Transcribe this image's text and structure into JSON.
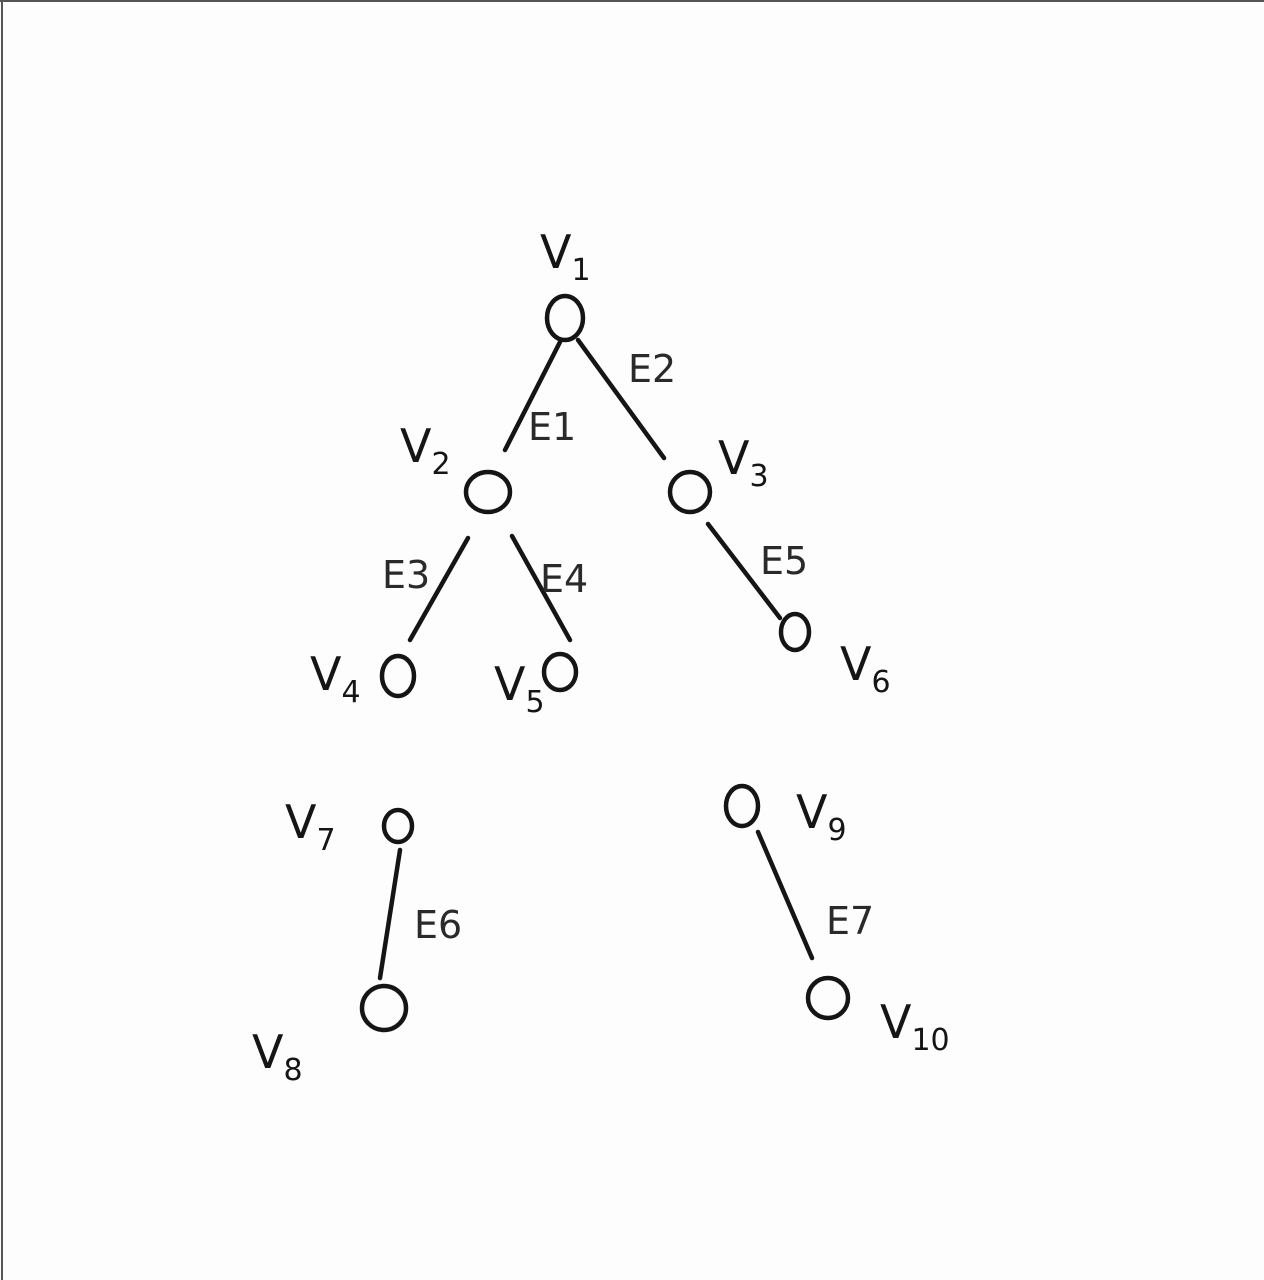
{
  "graph": {
    "nodes": [
      {
        "id": "v1",
        "letter": "V",
        "sub": "1"
      },
      {
        "id": "v2",
        "letter": "V",
        "sub": "2"
      },
      {
        "id": "v3",
        "letter": "V",
        "sub": "3"
      },
      {
        "id": "v4",
        "letter": "V",
        "sub": "4"
      },
      {
        "id": "v5",
        "letter": "V",
        "sub": "5"
      },
      {
        "id": "v6",
        "letter": "V",
        "sub": "6"
      },
      {
        "id": "v7",
        "letter": "V",
        "sub": "7"
      },
      {
        "id": "v8",
        "letter": "V",
        "sub": "8"
      },
      {
        "id": "v9",
        "letter": "V",
        "sub": "9"
      },
      {
        "id": "v10",
        "letter": "V",
        "sub": "10"
      }
    ],
    "edges": [
      {
        "id": "e1",
        "label": "E1",
        "from": "v1",
        "to": "v2"
      },
      {
        "id": "e2",
        "label": "E2",
        "from": "v1",
        "to": "v3"
      },
      {
        "id": "e3",
        "label": "E3",
        "from": "v2",
        "to": "v4"
      },
      {
        "id": "e4",
        "label": "E4",
        "from": "v2",
        "to": "v5"
      },
      {
        "id": "e5",
        "label": "E5",
        "from": "v3",
        "to": "v6"
      },
      {
        "id": "e6",
        "label": "E6",
        "from": "v7",
        "to": "v8"
      },
      {
        "id": "e7",
        "label": "E7",
        "from": "v9",
        "to": "v10"
      }
    ]
  },
  "colors": {
    "ink": "#151515",
    "paper": "#fdfdfd"
  }
}
